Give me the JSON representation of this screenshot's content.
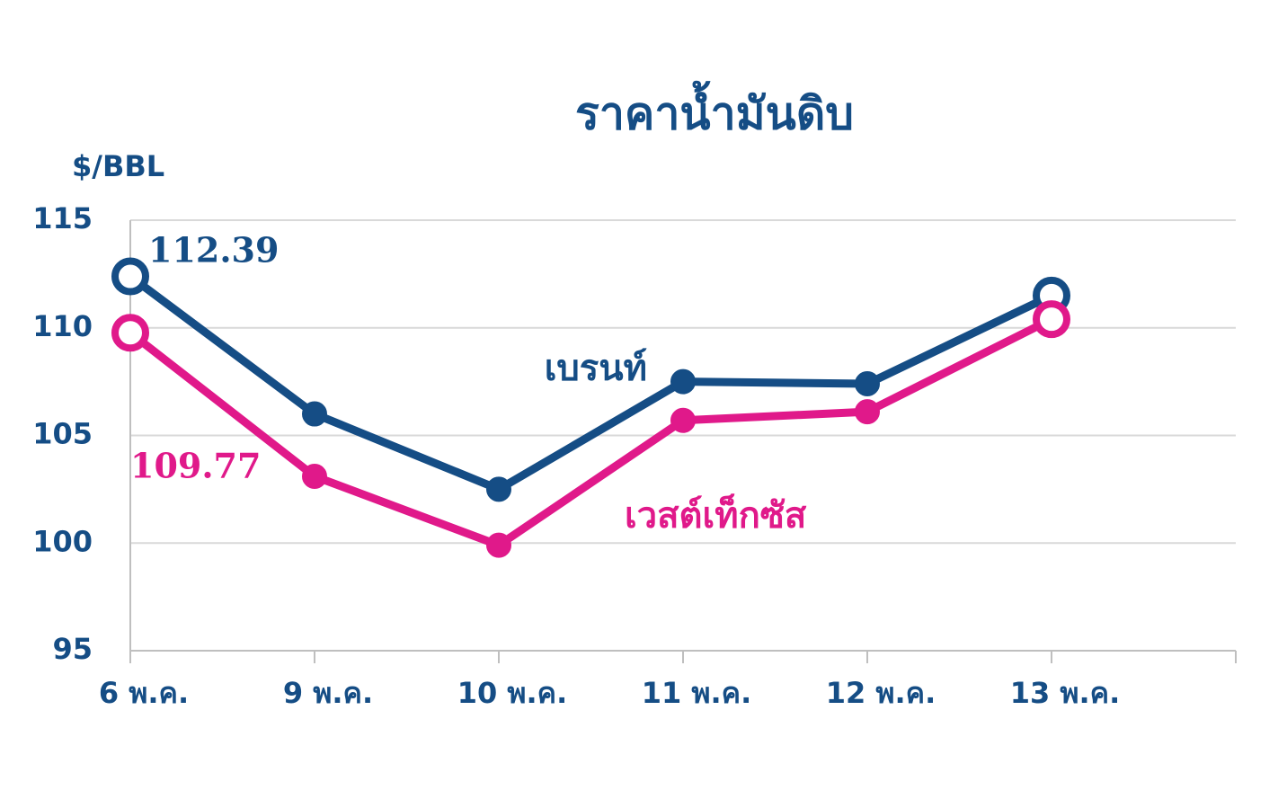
{
  "chart_data": {
    "type": "line",
    "title": "ราคาน้ำมันดิบ",
    "y_label": "$/BBL",
    "categories": [
      "6 พ.ค.",
      "9 พ.ค.",
      "10 พ.ค.",
      "11 พ.ค.",
      "12 พ.ค.",
      "13 พ.ค."
    ],
    "series": [
      {
        "name": "เบรนท์",
        "color": "#154d85",
        "values": [
          112.39,
          106.0,
          102.5,
          107.5,
          107.4,
          111.5
        ]
      },
      {
        "name": "เวสต์เท็กซัส",
        "color": "#e0198a",
        "values": [
          109.77,
          103.1,
          99.9,
          105.7,
          106.1,
          110.4
        ]
      }
    ],
    "ylim": [
      95,
      115
    ],
    "yticks": [
      95,
      100,
      105,
      110,
      115
    ],
    "grid": true
  }
}
